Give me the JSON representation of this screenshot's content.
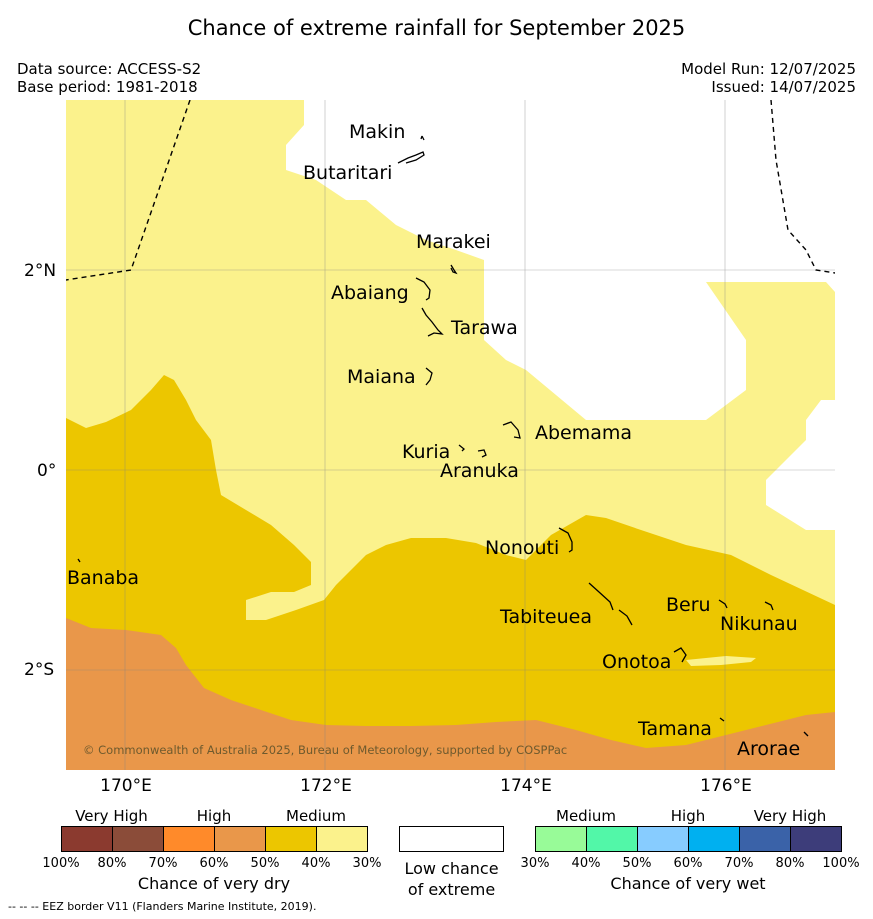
{
  "title": "Chance of extreme rainfall for September 2025",
  "header": {
    "data_source": "Data source: ACCESS-S2",
    "base_period": "Base period: 1981-2018",
    "model_run": "Model Run: 12/07/2025",
    "issued": "Issued: 14/07/2025"
  },
  "axes": {
    "lat_labels": [
      "2°N",
      "0°",
      "2°S"
    ],
    "lon_labels": [
      "170°E",
      "172°E",
      "174°E",
      "176°E"
    ]
  },
  "places": {
    "makin": "Makin",
    "butaritari": "Butaritari",
    "marakei": "Marakei",
    "abaiang": "Abaiang",
    "tarawa": "Tarawa",
    "maiana": "Maiana",
    "abemama": "Abemama",
    "kuria": "Kuria",
    "aranuka": "Aranuka",
    "banaba": "Banaba",
    "nonouti": "Nonouti",
    "tabiteuea": "Tabiteuea",
    "beru": "Beru",
    "nikunau": "Nikunau",
    "onotoa": "Onotoa",
    "tamana": "Tamana",
    "arorae": "Arorae"
  },
  "copyright": "© Commonwealth of Australia 2025, Bureau of Meteorology, supported by COSPPac",
  "legend": {
    "dry": {
      "headers": [
        "Very High",
        "High",
        "Medium"
      ],
      "colors": [
        "#8b3a2f",
        "#8b4c39",
        "#ff8a2a",
        "#e9974a",
        "#ecc600",
        "#fbf28c"
      ],
      "ticks": [
        "100%",
        "80%",
        "70%",
        "60%",
        "50%",
        "40%",
        "30%"
      ],
      "caption": "Chance of very dry"
    },
    "low": {
      "caption_line1": "Low chance",
      "caption_line2": "of extreme",
      "color": "#ffffff"
    },
    "wet": {
      "headers": [
        "Medium",
        "High",
        "Very High"
      ],
      "colors": [
        "#98fb98",
        "#52f7a8",
        "#87ccff",
        "#00b0f0",
        "#3a62a8",
        "#3d3d7a"
      ],
      "ticks": [
        "30%",
        "40%",
        "50%",
        "60%",
        "70%",
        "80%",
        "100%"
      ],
      "caption": "Chance of very wet"
    }
  },
  "footnote": "--  --  -- EEZ border V11 (Flanders Marine Institute, 2019)."
}
